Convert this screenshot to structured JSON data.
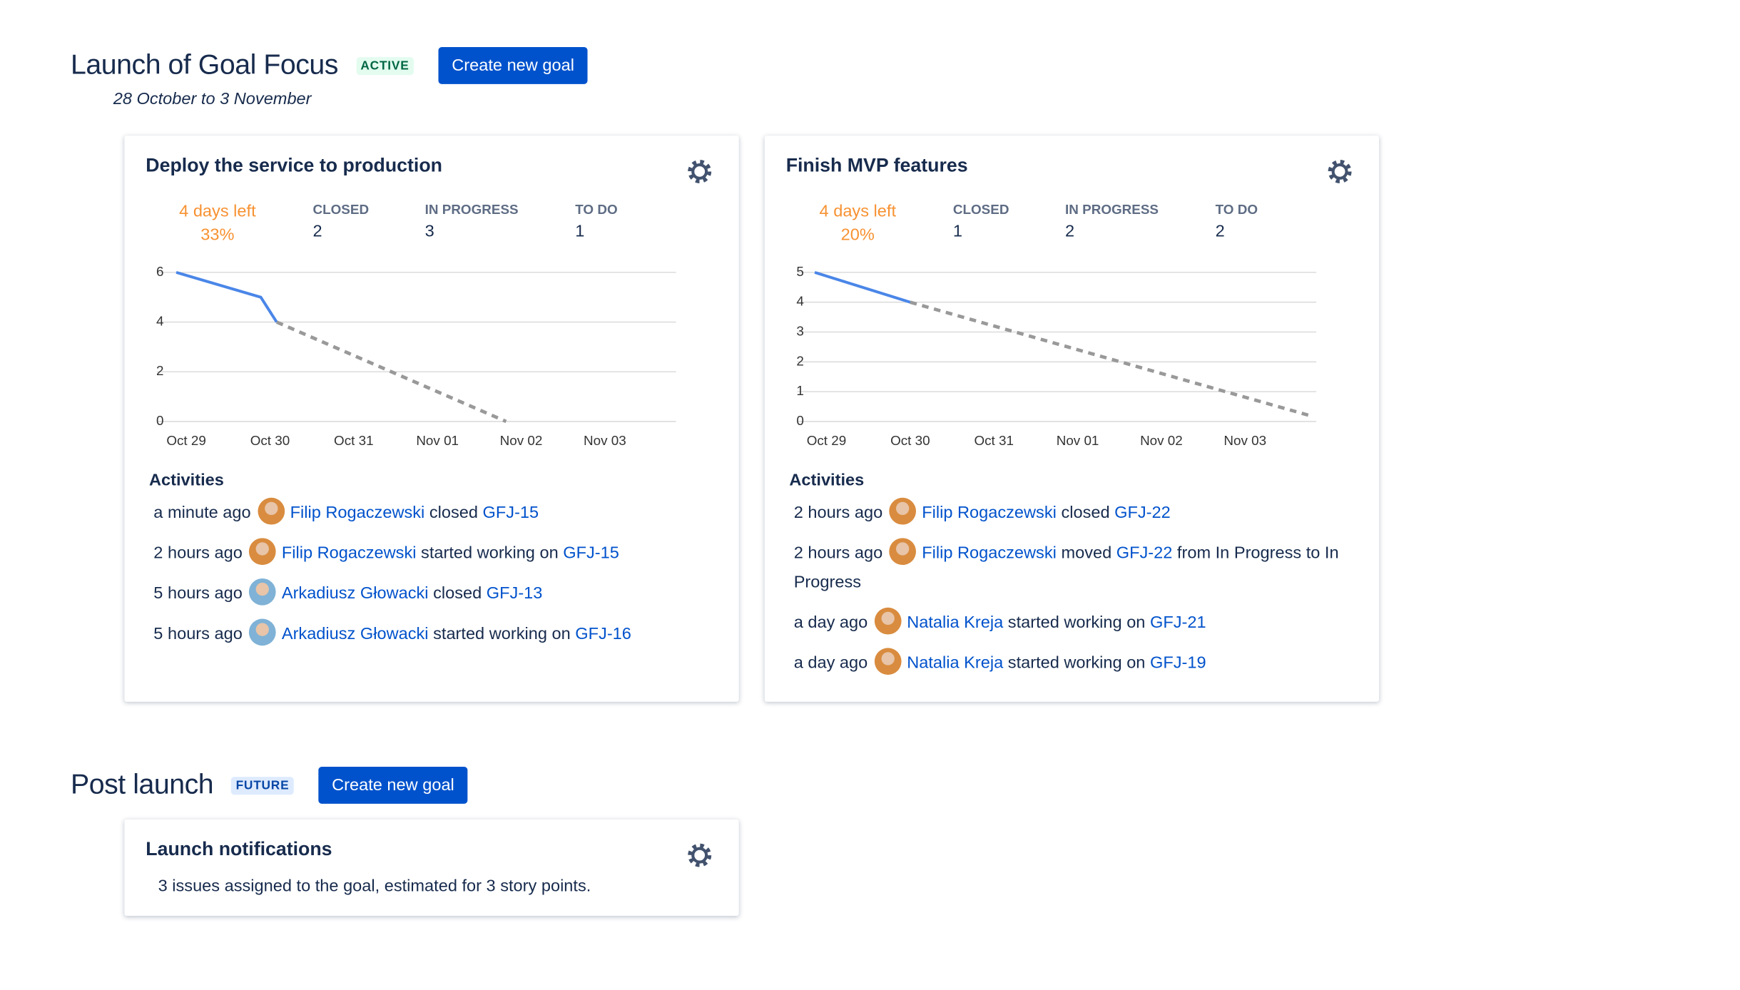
{
  "sprints": [
    {
      "title": "Launch of Goal Focus",
      "status": "ACTIVE",
      "button": "Create new goal",
      "dates": "28 October to 3 November",
      "goals": [
        {
          "title": "Deploy the service to production",
          "days_left": "4 days left",
          "percent": "33%",
          "stats": [
            {
              "label": "CLOSED",
              "value": 2
            },
            {
              "label": "IN PROGRESS",
              "value": 3
            },
            {
              "label": "TO DO",
              "value": 1
            }
          ],
          "chart": {
            "type": "line",
            "xlim": [
              -0.35,
              5.85
            ],
            "xticks": [
              {
                "value": 0,
                "label": "Oct 29"
              },
              {
                "value": 1,
                "label": "Oct 30"
              },
              {
                "value": 2,
                "label": "Oct 31"
              },
              {
                "value": 3,
                "label": "Nov 01"
              },
              {
                "value": 4,
                "label": "Nov 02"
              },
              {
                "value": 5,
                "label": "Nov 03"
              }
            ],
            "ylim": [
              0,
              6
            ],
            "yticks": [
              0,
              2,
              4,
              6
            ],
            "grid": true,
            "series": [
              {
                "color": "#4a86e8",
                "x": [
                  -0.12,
                  0.89,
                  1.08
                ],
                "values": [
                  6,
                  5,
                  4
                ]
              },
              {
                "color": "#999999",
                "dashed": true,
                "x": [
                  1.08,
                  3.82
                ],
                "values": [
                  4,
                  0
                ]
              }
            ]
          },
          "activities_title": "Activities",
          "activities": [
            {
              "time": "a minute ago",
              "user": "Filip Rogaczewski",
              "action": "closed",
              "issue": "GFJ-15"
            },
            {
              "time": "2 hours ago",
              "user": "Filip Rogaczewski",
              "action": "started working on",
              "issue": "GFJ-15"
            },
            {
              "time": "5 hours ago",
              "user": "Arkadiusz Głowacki",
              "action": "closed",
              "issue": "GFJ-13"
            },
            {
              "time": "5 hours ago",
              "user": "Arkadiusz Głowacki",
              "action": "started working on",
              "issue": "GFJ-16"
            }
          ]
        },
        {
          "title": "Finish MVP features",
          "days_left": "4 days left",
          "percent": "20%",
          "stats": [
            {
              "label": "CLOSED",
              "value": 1
            },
            {
              "label": "IN PROGRESS",
              "value": 2
            },
            {
              "label": "TO DO",
              "value": 2
            }
          ],
          "chart": {
            "type": "line",
            "xlim": [
              -0.35,
              5.85
            ],
            "xticks": [
              {
                "value": 0,
                "label": "Oct 29"
              },
              {
                "value": 1,
                "label": "Oct 30"
              },
              {
                "value": 2,
                "label": "Oct 31"
              },
              {
                "value": 3,
                "label": "Nov 01"
              },
              {
                "value": 4,
                "label": "Nov 02"
              },
              {
                "value": 5,
                "label": "Nov 03"
              }
            ],
            "ylim": [
              0,
              5
            ],
            "yticks": [
              0,
              1,
              2,
              3,
              4,
              5
            ],
            "grid": true,
            "series": [
              {
                "color": "#4a86e8",
                "x": [
                  -0.14,
                  1.0
                ],
                "values": [
                  5,
                  4
                ]
              },
              {
                "color": "#999999",
                "dashed": true,
                "x": [
                  1.0,
                  5.77
                ],
                "values": [
                  4,
                  0.2
                ]
              }
            ]
          },
          "activities_title": "Activities",
          "activities": [
            {
              "time": "2 hours ago",
              "user": "Filip Rogaczewski",
              "action": "closed",
              "issue": "GFJ-22"
            },
            {
              "time": "2 hours ago",
              "user": "Filip Rogaczewski",
              "action": "moved",
              "issue": "GFJ-22",
              "rest": "from In Progress to In Progress"
            },
            {
              "time": "a day ago",
              "user": "Natalia Kreja",
              "action": "started working on",
              "issue": "GFJ-21"
            },
            {
              "time": "a day ago",
              "user": "Natalia Kreja",
              "action": "started working on",
              "issue": "GFJ-19"
            }
          ]
        }
      ]
    },
    {
      "title": "Post launch",
      "status": "FUTURE",
      "button": "Create new goal",
      "goals": [
        {
          "title": "Launch notifications",
          "description": "3 issues assigned to the goal, estimated for 3 story points."
        }
      ]
    }
  ]
}
